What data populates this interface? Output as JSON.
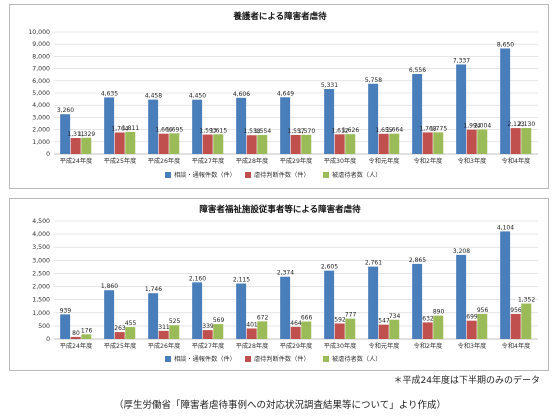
{
  "chart_data": [
    {
      "type": "bar",
      "title": "養護者による障害者虐待",
      "categories": [
        "平成24年度",
        "平成25年度",
        "平成26年度",
        "平成27年度",
        "平成28年度",
        "平成29年度",
        "平成30年度",
        "令和元年度",
        "令和2年度",
        "令和3年度",
        "令和4年度"
      ],
      "series": [
        {
          "name": "相談・通報件数（件）",
          "color": "#4a7ebb",
          "values": [
            3260,
            4635,
            4458,
            4450,
            4606,
            4649,
            5331,
            5758,
            6556,
            7337,
            8650
          ]
        },
        {
          "name": "虐待判断件数（件）",
          "color": "#c0504d",
          "values": [
            1311,
            1764,
            1666,
            1593,
            1538,
            1557,
            1612,
            1655,
            1768,
            1994,
            2123
          ]
        },
        {
          "name": "被虐待者数（人）",
          "color": "#9bbb59",
          "values": [
            1329,
            1811,
            1695,
            1615,
            1554,
            1570,
            1626,
            1664,
            1775,
            2004,
            2130
          ]
        }
      ],
      "ylim": [
        0,
        10000
      ],
      "yticks": [
        0,
        1000,
        2000,
        3000,
        4000,
        5000,
        6000,
        7000,
        8000,
        9000,
        10000
      ],
      "grid": true,
      "legend": "bottom-center"
    },
    {
      "type": "bar",
      "title": "障害者福祉施設従事者等による障害者虐待",
      "categories": [
        "平成24年度",
        "平成25年度",
        "平成26年度",
        "平成27年度",
        "平成28年度",
        "平成29年度",
        "平成30年度",
        "令和元年度",
        "令和2年度",
        "令和3年度",
        "令和4年度"
      ],
      "series": [
        {
          "name": "相談・通報件数（件）",
          "color": "#4a7ebb",
          "values": [
            939,
            1860,
            1746,
            2160,
            2115,
            2374,
            2605,
            2761,
            2865,
            3208,
            4104
          ]
        },
        {
          "name": "虐待判断件数（件）",
          "color": "#c0504d",
          "values": [
            80,
            263,
            311,
            339,
            401,
            464,
            592,
            547,
            632,
            699,
            956
          ]
        },
        {
          "name": "被虐待者数（人）",
          "color": "#9bbb59",
          "values": [
            176,
            455,
            525,
            569,
            672,
            666,
            777,
            734,
            890,
            956,
            1352
          ]
        }
      ],
      "ylim": [
        0,
        4500
      ],
      "yticks": [
        0,
        500,
        1000,
        1500,
        2000,
        2500,
        3000,
        3500,
        4000,
        4500
      ],
      "grid": true,
      "legend": "bottom-center"
    }
  ],
  "note": "＊平成24年度は下半期のみのデータ",
  "source": "（厚生労働省「障害者虐待事例への対応状況調査結果等について」より作成）"
}
